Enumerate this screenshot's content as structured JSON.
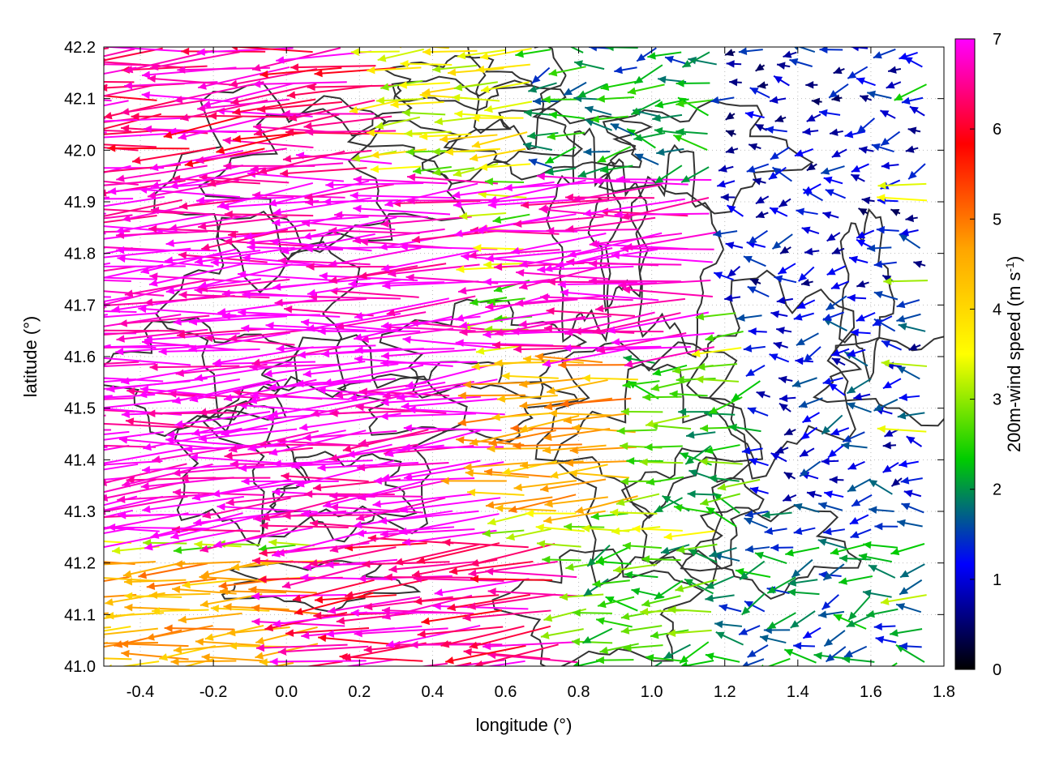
{
  "chart_data": {
    "type": "vector-field",
    "xlabel": "longitude (°)",
    "ylabel": "latitude (°)",
    "xlim": [
      -0.5,
      1.8
    ],
    "ylim": [
      41.0,
      42.2
    ],
    "x_ticks": [
      "-0.4",
      "-0.2",
      "0.0",
      "0.2",
      "0.4",
      "0.6",
      "0.8",
      "1.0",
      "1.2",
      "1.4",
      "1.6",
      "1.8"
    ],
    "y_ticks": [
      "41.0",
      "41.1",
      "41.2",
      "41.3",
      "41.4",
      "41.5",
      "41.6",
      "41.7",
      "41.8",
      "41.9",
      "42.0",
      "42.1",
      "42.2"
    ],
    "grid": "dotted",
    "colorbar": {
      "label_main": "200m-wind speed (m s",
      "label_sup": "-1",
      "label_end": ")",
      "range": [
        0,
        7
      ],
      "ticks": [
        "0",
        "1",
        "2",
        "3",
        "4",
        "5",
        "6",
        "7"
      ],
      "stops": [
        "#000000",
        "#0000ff",
        "#00cc00",
        "#ffff00",
        "#ffa500",
        "#ff0000",
        "#ff00ff"
      ]
    },
    "field_description": {
      "prevailing_direction": "westward",
      "strong_region_speed_ms": 7,
      "weak_region": "east of 1.2° longitude, speeds 0–2 m/s",
      "contour_lines": "terrain elevation, dark grey"
    },
    "wind_regions": [
      {
        "lon": [
          -0.5,
          0.6
        ],
        "lat": [
          41.25,
          41.95
        ],
        "speed": 7
      },
      {
        "lon": [
          -0.5,
          0.3
        ],
        "lat": [
          41.95,
          42.2
        ],
        "speed": 6.5
      },
      {
        "lon": [
          0.3,
          0.7
        ],
        "lat": [
          42.0,
          42.2
        ],
        "speed": 3.5
      },
      {
        "lon": [
          0.7,
          1.2
        ],
        "lat": [
          41.6,
          41.95
        ],
        "speed": 7
      },
      {
        "lon": [
          0.6,
          1.0
        ],
        "lat": [
          41.3,
          41.6
        ],
        "speed": 4.5
      },
      {
        "lon": [
          1.0,
          1.4
        ],
        "lat": [
          41.3,
          41.6
        ],
        "speed": 2.5
      },
      {
        "lon": [
          1.3,
          1.75
        ],
        "lat": [
          41.3,
          41.7
        ],
        "speed": 1.2
      },
      {
        "lon": [
          1.2,
          1.75
        ],
        "lat": [
          41.0,
          41.3
        ],
        "speed": 1.8
      },
      {
        "lon": [
          0.8,
          1.2
        ],
        "lat": [
          41.0,
          41.25
        ],
        "speed": 2.5
      },
      {
        "lon": [
          -0.5,
          0.1
        ],
        "lat": [
          41.0,
          41.22
        ],
        "speed": 4.5
      },
      {
        "lon": [
          0.1,
          0.8
        ],
        "lat": [
          41.0,
          41.25
        ],
        "speed": 6.5
      },
      {
        "lon": [
          1.2,
          1.75
        ],
        "lat": [
          41.7,
          42.2
        ],
        "speed": 1.0
      },
      {
        "lon": [
          0.7,
          1.2
        ],
        "lat": [
          41.95,
          42.2
        ],
        "speed": 2.0
      }
    ]
  }
}
